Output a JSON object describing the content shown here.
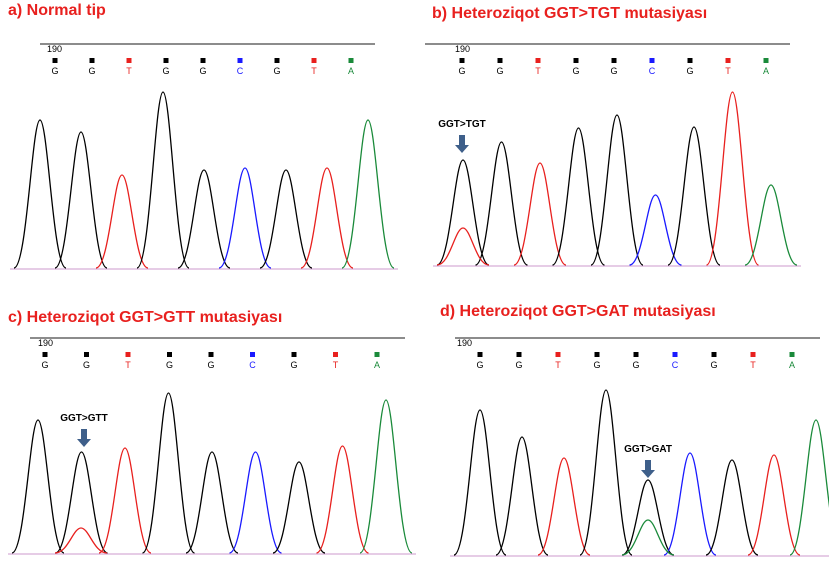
{
  "panels": [
    {
      "title": "a) Normal tip",
      "position": "190",
      "bases": [
        "G",
        "G",
        "T",
        "G",
        "G",
        "C",
        "G",
        "T",
        "A"
      ]
    },
    {
      "title": "b) Heteroziqot GGT>TGT  mutasiyası",
      "position": "190",
      "bases": [
        "G",
        "G",
        "T",
        "G",
        "G",
        "C",
        "G",
        "T",
        "A"
      ],
      "annotation": "GGT>TGT"
    },
    {
      "title": "c) Heteroziqot GGT>GTT mutasiyası",
      "position": "190",
      "bases": [
        "G",
        "G",
        "T",
        "G",
        "G",
        "C",
        "G",
        "T",
        "A"
      ],
      "annotation": "GGT>GTT"
    },
    {
      "title": "d) Heteroziqot GGT>GAT mutasiyası",
      "position": "190",
      "bases": [
        "G",
        "G",
        "T",
        "G",
        "G",
        "C",
        "G",
        "T",
        "A"
      ],
      "annotation": "GGT>GAT"
    }
  ]
}
